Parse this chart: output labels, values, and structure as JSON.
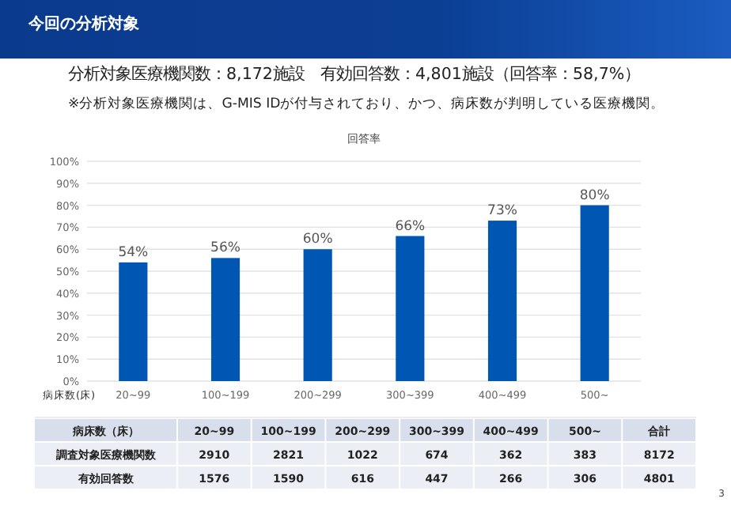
{
  "chart_data": [
    {
      "type": "bar",
      "title": "回答率",
      "xlabel": "病床数(床)",
      "categories": [
        "20~99",
        "100~199",
        "200~299",
        "300~399",
        "400~499",
        "500~"
      ],
      "values": [
        54,
        56,
        60,
        66,
        73,
        80
      ],
      "value_labels": [
        "54%",
        "56%",
        "60%",
        "66%",
        "73%",
        "80%"
      ],
      "color": "#0057b3",
      "ylim": [
        0,
        100
      ],
      "yticks": [
        {
          "value": 0,
          "label": "0%"
        },
        {
          "value": 10,
          "label": "10%"
        },
        {
          "value": 20,
          "label": "20%"
        },
        {
          "value": 30,
          "label": "30%"
        },
        {
          "value": 40,
          "label": "40%"
        },
        {
          "value": 50,
          "label": "50%"
        },
        {
          "value": 60,
          "label": "60%"
        },
        {
          "value": 70,
          "label": "70%"
        },
        {
          "value": 80,
          "label": "80%"
        },
        {
          "value": 90,
          "label": "90%"
        },
        {
          "value": 100,
          "label": "100%"
        }
      ],
      "grid": "y",
      "annotations": [
        "今回の分析対象",
        "分析対象医療機関数：8,172施設　有効回答数：4,801施設（回答率：58,7%）",
        "※分析対象医療機関は、G-MIS IDが付与されており、かつ、病床数が判明している医療機関。",
        "3"
      ]
    },
    {
      "type": "other",
      "xlabel": "病床数（床）",
      "categories": [
        "20~99",
        "100~199",
        "200~299",
        "300~399",
        "400~499",
        "500~",
        "合計"
      ],
      "series": [
        {
          "name": "調査対象医療機関数",
          "values": [
            2910,
            2821,
            1022,
            674,
            362,
            383,
            8172
          ]
        },
        {
          "name": "有効回答数",
          "values": [
            1576,
            1590,
            616,
            447,
            266,
            306,
            4801
          ]
        }
      ],
      "data_labels": true
    }
  ]
}
